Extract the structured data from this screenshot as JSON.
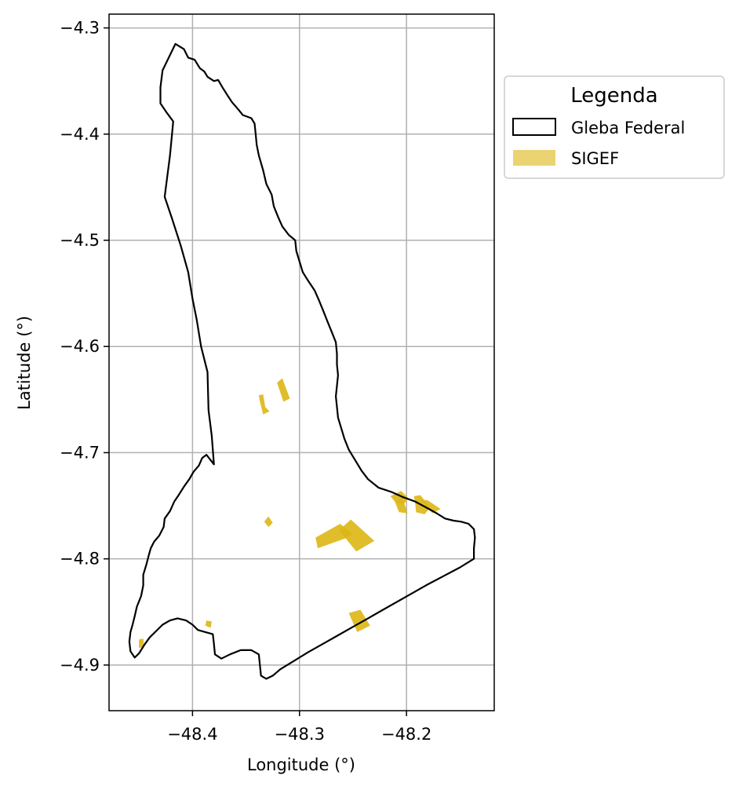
{
  "chart_data": {
    "type": "map",
    "xlabel": "Longitude (°)",
    "ylabel": "Latitude (°)",
    "xlim": [
      -48.478,
      -48.118
    ],
    "ylim": [
      -4.943,
      -4.287
    ],
    "grid": true,
    "x_ticks": [
      {
        "value": -48.4,
        "label": "−48.4"
      },
      {
        "value": -48.3,
        "label": "−48.3"
      },
      {
        "value": -48.2,
        "label": "−48.2"
      }
    ],
    "y_ticks": [
      {
        "value": -4.3,
        "label": "−4.3"
      },
      {
        "value": -4.4,
        "label": "−4.4"
      },
      {
        "value": -4.5,
        "label": "−4.5"
      },
      {
        "value": -4.6,
        "label": "−4.6"
      },
      {
        "value": -4.7,
        "label": "−4.7"
      },
      {
        "value": -4.8,
        "label": "−4.8"
      },
      {
        "value": -4.9,
        "label": "−4.9"
      }
    ],
    "legend": {
      "title": "Legenda",
      "placement": "outside-right-top",
      "entries": [
        {
          "label": "Gleba Federal",
          "style": "outline",
          "color": "#000000"
        },
        {
          "label": "SIGEF",
          "style": "fill",
          "color": "#DDB614"
        }
      ]
    },
    "gleba_federal": [
      [
        -48.416,
        -4.315
      ],
      [
        -48.408,
        -4.32
      ],
      [
        -48.404,
        -4.328
      ],
      [
        -48.398,
        -4.33
      ],
      [
        -48.393,
        -4.338
      ],
      [
        -48.389,
        -4.341
      ],
      [
        -48.386,
        -4.346
      ],
      [
        -48.38,
        -4.35
      ],
      [
        -48.376,
        -4.349
      ],
      [
        -48.372,
        -4.356
      ],
      [
        -48.367,
        -4.364
      ],
      [
        -48.363,
        -4.37
      ],
      [
        -48.357,
        -4.377
      ],
      [
        -48.353,
        -4.382
      ],
      [
        -48.345,
        -4.385
      ],
      [
        -48.342,
        -4.39
      ],
      [
        -48.341,
        -4.4
      ],
      [
        -48.34,
        -4.41
      ],
      [
        -48.338,
        -4.42
      ],
      [
        -48.334,
        -4.434
      ],
      [
        -48.331,
        -4.447
      ],
      [
        -48.326,
        -4.457
      ],
      [
        -48.324,
        -4.468
      ],
      [
        -48.32,
        -4.478
      ],
      [
        -48.316,
        -4.487
      ],
      [
        -48.31,
        -4.495
      ],
      [
        -48.304,
        -4.5
      ],
      [
        -48.303,
        -4.51
      ],
      [
        -48.3,
        -4.52
      ],
      [
        -48.297,
        -4.53
      ],
      [
        -48.292,
        -4.538
      ],
      [
        -48.286,
        -4.547
      ],
      [
        -48.282,
        -4.556
      ],
      [
        -48.278,
        -4.566
      ],
      [
        -48.274,
        -4.576
      ],
      [
        -48.27,
        -4.586
      ],
      [
        -48.266,
        -4.596
      ],
      [
        -48.265,
        -4.607
      ],
      [
        -48.265,
        -4.617
      ],
      [
        -48.264,
        -4.627
      ],
      [
        -48.265,
        -4.637
      ],
      [
        -48.266,
        -4.647
      ],
      [
        -48.265,
        -4.657
      ],
      [
        -48.264,
        -4.667
      ],
      [
        -48.261,
        -4.677
      ],
      [
        -48.258,
        -4.687
      ],
      [
        -48.254,
        -4.697
      ],
      [
        -48.248,
        -4.707
      ],
      [
        -48.242,
        -4.717
      ],
      [
        -48.236,
        -4.725
      ],
      [
        -48.226,
        -4.733
      ],
      [
        -48.214,
        -4.737
      ],
      [
        -48.203,
        -4.742
      ],
      [
        -48.192,
        -4.746
      ],
      [
        -48.181,
        -4.752
      ],
      [
        -48.172,
        -4.757
      ],
      [
        -48.164,
        -4.762
      ],
      [
        -48.156,
        -4.764
      ],
      [
        -48.149,
        -4.765
      ],
      [
        -48.142,
        -4.767
      ],
      [
        -48.137,
        -4.772
      ],
      [
        -48.136,
        -4.78
      ],
      [
        -48.137,
        -4.79
      ],
      [
        -48.137,
        -4.8
      ],
      [
        -48.15,
        -4.808
      ],
      [
        -48.165,
        -4.816
      ],
      [
        -48.18,
        -4.824
      ],
      [
        -48.194,
        -4.832
      ],
      [
        -48.208,
        -4.84
      ],
      [
        -48.222,
        -4.848
      ],
      [
        -48.236,
        -4.856
      ],
      [
        -48.25,
        -4.864
      ],
      [
        -48.264,
        -4.872
      ],
      [
        -48.278,
        -4.88
      ],
      [
        -48.292,
        -4.888
      ],
      [
        -48.305,
        -4.896
      ],
      [
        -48.318,
        -4.904
      ],
      [
        -48.325,
        -4.91
      ],
      [
        -48.331,
        -4.913
      ],
      [
        -48.336,
        -4.91
      ],
      [
        -48.337,
        -4.9
      ],
      [
        -48.338,
        -4.89
      ],
      [
        -48.345,
        -4.886
      ],
      [
        -48.355,
        -4.886
      ],
      [
        -48.365,
        -4.89
      ],
      [
        -48.373,
        -4.894
      ],
      [
        -48.379,
        -4.89
      ],
      [
        -48.38,
        -4.88
      ],
      [
        -48.381,
        -4.871
      ],
      [
        -48.388,
        -4.869
      ],
      [
        -48.395,
        -4.867
      ],
      [
        -48.4,
        -4.862
      ],
      [
        -48.406,
        -4.858
      ],
      [
        -48.414,
        -4.856
      ],
      [
        -48.421,
        -4.858
      ],
      [
        -48.428,
        -4.862
      ],
      [
        -48.434,
        -4.868
      ],
      [
        -48.44,
        -4.874
      ],
      [
        -48.445,
        -4.881
      ],
      [
        -48.45,
        -4.889
      ],
      [
        -48.454,
        -4.893
      ],
      [
        -48.458,
        -4.887
      ],
      [
        -48.459,
        -4.878
      ],
      [
        -48.458,
        -4.869
      ],
      [
        -48.456,
        -4.862
      ],
      [
        -48.454,
        -4.854
      ],
      [
        -48.452,
        -4.845
      ],
      [
        -48.448,
        -4.835
      ],
      [
        -48.446,
        -4.825
      ],
      [
        -48.446,
        -4.815
      ],
      [
        -48.443,
        -4.805
      ],
      [
        -48.441,
        -4.797
      ],
      [
        -48.439,
        -4.79
      ],
      [
        -48.436,
        -4.784
      ],
      [
        -48.431,
        -4.778
      ],
      [
        -48.427,
        -4.77
      ],
      [
        -48.426,
        -4.762
      ],
      [
        -48.421,
        -4.755
      ],
      [
        -48.417,
        -4.746
      ],
      [
        -48.413,
        -4.74
      ],
      [
        -48.408,
        -4.732
      ],
      [
        -48.403,
        -4.725
      ],
      [
        -48.399,
        -4.718
      ],
      [
        -48.394,
        -4.712
      ],
      [
        -48.391,
        -4.705
      ],
      [
        -48.387,
        -4.702
      ],
      [
        -48.38,
        -4.711
      ],
      [
        -48.382,
        -4.684
      ],
      [
        -48.385,
        -4.66
      ],
      [
        -48.386,
        -4.624
      ],
      [
        -48.392,
        -4.6
      ],
      [
        -48.396,
        -4.575
      ],
      [
        -48.4,
        -4.555
      ],
      [
        -48.404,
        -4.53
      ],
      [
        -48.411,
        -4.505
      ],
      [
        -48.419,
        -4.48
      ],
      [
        -48.426,
        -4.459
      ],
      [
        -48.424,
        -4.443
      ],
      [
        -48.421,
        -4.42
      ],
      [
        -48.418,
        -4.388
      ],
      [
        -48.424,
        -4.38
      ],
      [
        -48.43,
        -4.371
      ],
      [
        -48.43,
        -4.356
      ],
      [
        -48.428,
        -4.34
      ],
      [
        -48.416,
        -4.315
      ]
    ],
    "sigef_parcels": [
      [
        [
          -48.338,
          -4.646
        ],
        [
          -48.334,
          -4.645
        ],
        [
          -48.332,
          -4.657
        ],
        [
          -48.328,
          -4.661
        ],
        [
          -48.334,
          -4.664
        ],
        [
          -48.337,
          -4.652
        ]
      ],
      [
        [
          -48.321,
          -4.634
        ],
        [
          -48.316,
          -4.63
        ],
        [
          -48.309,
          -4.649
        ],
        [
          -48.315,
          -4.652
        ],
        [
          -48.318,
          -4.643
        ]
      ],
      [
        [
          -48.329,
          -4.76
        ],
        [
          -48.325,
          -4.766
        ],
        [
          -48.329,
          -4.77
        ],
        [
          -48.333,
          -4.765
        ]
      ],
      [
        [
          -48.285,
          -4.78
        ],
        [
          -48.262,
          -4.767
        ],
        [
          -48.25,
          -4.777
        ],
        [
          -48.258,
          -4.781
        ],
        [
          -48.283,
          -4.79
        ]
      ],
      [
        [
          -48.252,
          -4.763
        ],
        [
          -48.23,
          -4.783
        ],
        [
          -48.247,
          -4.793
        ],
        [
          -48.263,
          -4.773
        ]
      ],
      [
        [
          -48.215,
          -4.741
        ],
        [
          -48.205,
          -4.736
        ],
        [
          -48.198,
          -4.743
        ],
        [
          -48.203,
          -4.749
        ],
        [
          -48.211,
          -4.746
        ]
      ],
      [
        [
          -48.211,
          -4.746
        ],
        [
          -48.204,
          -4.742
        ],
        [
          -48.199,
          -4.757
        ],
        [
          -48.207,
          -4.756
        ]
      ],
      [
        [
          -48.193,
          -4.741
        ],
        [
          -48.187,
          -4.74
        ],
        [
          -48.178,
          -4.752
        ],
        [
          -48.183,
          -4.758
        ],
        [
          -48.191,
          -4.756
        ],
        [
          -48.192,
          -4.747
        ]
      ],
      [
        [
          -48.187,
          -4.744
        ],
        [
          -48.18,
          -4.745
        ],
        [
          -48.168,
          -4.753
        ],
        [
          -48.176,
          -4.757
        ]
      ],
      [
        [
          -48.254,
          -4.851
        ],
        [
          -48.243,
          -4.848
        ],
        [
          -48.234,
          -4.863
        ],
        [
          -48.246,
          -4.869
        ]
      ],
      [
        [
          -48.387,
          -4.858
        ],
        [
          -48.382,
          -4.859
        ],
        [
          -48.383,
          -4.865
        ],
        [
          -48.388,
          -4.863
        ]
      ],
      [
        [
          -48.45,
          -4.876
        ],
        [
          -48.446,
          -4.875
        ],
        [
          -48.445,
          -4.883
        ],
        [
          -48.45,
          -4.884
        ]
      ]
    ]
  }
}
